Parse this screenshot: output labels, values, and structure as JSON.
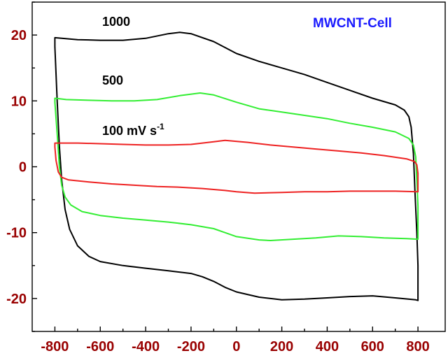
{
  "chart_data": {
    "type": "line",
    "title": "MWCNT-Cell",
    "xlabel": "",
    "ylabel": "",
    "xlim": [
      -900,
      920
    ],
    "ylim": [
      -25,
      25
    ],
    "xticks": [
      -800,
      -600,
      -400,
      -200,
      0,
      200,
      400,
      600,
      800
    ],
    "yticks": [
      -20,
      -10,
      0,
      10,
      20
    ],
    "xtick_labels": [
      "-800",
      "-600",
      "-400",
      "-200",
      "0",
      "200",
      "400",
      "600",
      "800"
    ],
    "ytick_labels": [
      "-20",
      "-10",
      "0",
      "10",
      "20"
    ],
    "grid": false,
    "legend": "none",
    "annotations": [
      {
        "text": "1000",
        "x": -690,
        "y": 21.5
      },
      {
        "text": "500",
        "x": -690,
        "y": 12.6
      },
      {
        "text": "100 mV s",
        "superscript": "-1",
        "x": -690,
        "y": 4.9
      }
    ],
    "series": [
      {
        "color": "#000000",
        "points": [
          [
            -800,
            18.2
          ],
          [
            -790,
            10.0
          ],
          [
            -780,
            3.0
          ],
          [
            -770,
            -2.0
          ],
          [
            -755,
            -6.5
          ],
          [
            -735,
            -9.5
          ],
          [
            -700,
            -12.0
          ],
          [
            -650,
            -13.6
          ],
          [
            -600,
            -14.4
          ],
          [
            -500,
            -15.0
          ],
          [
            -400,
            -15.4
          ],
          [
            -300,
            -15.8
          ],
          [
            -200,
            -16.2
          ],
          [
            -150,
            -16.7
          ],
          [
            -100,
            -17.4
          ],
          [
            -50,
            -18.3
          ],
          [
            0,
            -19.0
          ],
          [
            100,
            -19.8
          ],
          [
            200,
            -20.2
          ],
          [
            300,
            -20.1
          ],
          [
            400,
            -19.9
          ],
          [
            500,
            -19.7
          ],
          [
            600,
            -19.6
          ],
          [
            700,
            -19.9
          ],
          [
            790,
            -20.2
          ],
          [
            800,
            -20.3
          ],
          [
            800,
            -15.0
          ],
          [
            795,
            -10.0
          ],
          [
            787,
            -4.0
          ],
          [
            780,
            2.0
          ],
          [
            770,
            6.0
          ],
          [
            760,
            7.6
          ],
          [
            740,
            8.6
          ],
          [
            700,
            9.4
          ],
          [
            600,
            10.4
          ],
          [
            500,
            11.6
          ],
          [
            400,
            12.8
          ],
          [
            300,
            14.0
          ],
          [
            200,
            15.0
          ],
          [
            100,
            16.0
          ],
          [
            0,
            17.2
          ],
          [
            -100,
            19.0
          ],
          [
            -200,
            20.2
          ],
          [
            -250,
            20.4
          ],
          [
            -300,
            20.2
          ],
          [
            -400,
            19.5
          ],
          [
            -500,
            19.2
          ],
          [
            -600,
            19.2
          ],
          [
            -700,
            19.3
          ],
          [
            -800,
            19.6
          ]
        ]
      },
      {
        "color": "#33ee33",
        "points": [
          [
            -800,
            9.8
          ],
          [
            -790,
            5.0
          ],
          [
            -780,
            0.0
          ],
          [
            -770,
            -2.8
          ],
          [
            -755,
            -4.6
          ],
          [
            -730,
            -5.8
          ],
          [
            -680,
            -6.8
          ],
          [
            -600,
            -7.4
          ],
          [
            -500,
            -7.8
          ],
          [
            -400,
            -8.1
          ],
          [
            -300,
            -8.4
          ],
          [
            -200,
            -8.8
          ],
          [
            -100,
            -9.4
          ],
          [
            -50,
            -10.0
          ],
          [
            0,
            -10.6
          ],
          [
            100,
            -11.1
          ],
          [
            150,
            -11.2
          ],
          [
            250,
            -11.0
          ],
          [
            350,
            -10.8
          ],
          [
            450,
            -10.5
          ],
          [
            550,
            -10.6
          ],
          [
            650,
            -10.8
          ],
          [
            750,
            -10.9
          ],
          [
            800,
            -11.0
          ],
          [
            800,
            -6.0
          ],
          [
            795,
            -2.0
          ],
          [
            790,
            1.5
          ],
          [
            780,
            3.3
          ],
          [
            760,
            4.3
          ],
          [
            700,
            5.3
          ],
          [
            600,
            6.0
          ],
          [
            500,
            6.6
          ],
          [
            400,
            7.3
          ],
          [
            300,
            7.8
          ],
          [
            200,
            8.3
          ],
          [
            100,
            8.8
          ],
          [
            0,
            9.8
          ],
          [
            -100,
            10.9
          ],
          [
            -160,
            11.2
          ],
          [
            -250,
            10.8
          ],
          [
            -350,
            10.2
          ],
          [
            -450,
            10.0
          ],
          [
            -550,
            10.0
          ],
          [
            -650,
            10.1
          ],
          [
            -750,
            10.2
          ],
          [
            -800,
            10.4
          ]
        ]
      },
      {
        "color": "#ee2222",
        "points": [
          [
            -800,
            3.0
          ],
          [
            -795,
            1.0
          ],
          [
            -785,
            -0.8
          ],
          [
            -770,
            -1.6
          ],
          [
            -740,
            -2.0
          ],
          [
            -650,
            -2.3
          ],
          [
            -550,
            -2.6
          ],
          [
            -450,
            -2.8
          ],
          [
            -350,
            -3.0
          ],
          [
            -250,
            -3.1
          ],
          [
            -150,
            -3.3
          ],
          [
            -50,
            -3.6
          ],
          [
            0,
            -3.8
          ],
          [
            80,
            -4.0
          ],
          [
            200,
            -3.9
          ],
          [
            300,
            -3.8
          ],
          [
            400,
            -3.8
          ],
          [
            500,
            -3.7
          ],
          [
            600,
            -3.7
          ],
          [
            700,
            -3.7
          ],
          [
            800,
            -3.8
          ],
          [
            800,
            -1.0
          ],
          [
            795,
            0.3
          ],
          [
            785,
            0.8
          ],
          [
            750,
            1.2
          ],
          [
            650,
            1.7
          ],
          [
            550,
            2.1
          ],
          [
            450,
            2.4
          ],
          [
            350,
            2.7
          ],
          [
            250,
            3.0
          ],
          [
            150,
            3.3
          ],
          [
            50,
            3.7
          ],
          [
            -50,
            4.0
          ],
          [
            -100,
            3.8
          ],
          [
            -200,
            3.4
          ],
          [
            -300,
            3.3
          ],
          [
            -400,
            3.3
          ],
          [
            -500,
            3.4
          ],
          [
            -600,
            3.5
          ],
          [
            -700,
            3.6
          ],
          [
            -800,
            3.6
          ]
        ]
      }
    ],
    "colors": {
      "axis": "#000000",
      "tick_label": "#990000",
      "annotation": "#000000",
      "title": "#1a1aff"
    }
  }
}
